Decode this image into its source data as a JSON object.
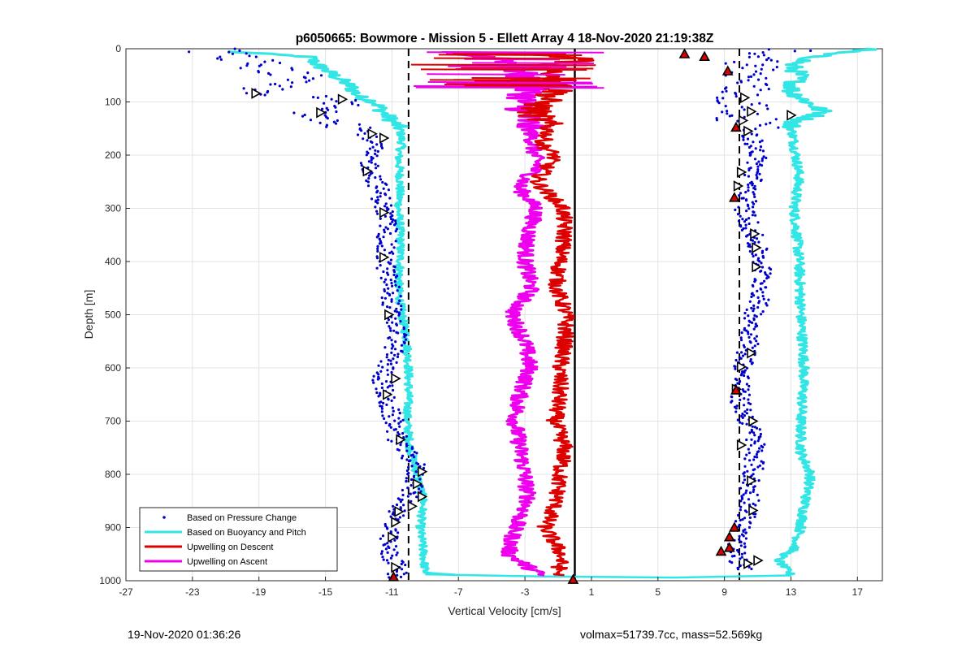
{
  "chart_data": {
    "type": "scatter",
    "title": "p6050665: Bowmore - Mission 5 - Ellett Array 4 18-Nov-2020 21:19:38Z",
    "xlabel": "Vertical Velocity [cm/s]",
    "ylabel": "Depth [m]",
    "xlim": [
      -27,
      18.5
    ],
    "ylim": [
      0,
      1000
    ],
    "y_reversed": true,
    "grid": true,
    "x_ticks": [
      -27,
      -23,
      -19,
      -15,
      -11,
      -7,
      -3,
      1,
      5,
      9,
      13,
      17
    ],
    "y_ticks": [
      0,
      100,
      200,
      300,
      400,
      500,
      600,
      700,
      800,
      900,
      1000
    ],
    "legend_position": "bottom-left",
    "reference_lines": [
      {
        "style": "dashed",
        "x": -10.0,
        "color": "#000000"
      },
      {
        "style": "dashed",
        "x": 9.9,
        "color": "#000000"
      },
      {
        "style": "solid",
        "x": 0.0,
        "color": "#000000"
      }
    ],
    "series": [
      {
        "name": "Based on Pressure Change",
        "kind": "points",
        "color": "#0000cc",
        "descent": {
          "depth": [
            0,
            20,
            50,
            80,
            100,
            120,
            140,
            160,
            180,
            200,
            230,
            260,
            300,
            340,
            380,
            420,
            460,
            500,
            540,
            580,
            620,
            660,
            700,
            740,
            780,
            820,
            860,
            900,
            940,
            980,
            995
          ],
          "velocity": [
            -22,
            -20,
            -17,
            -19,
            -14,
            -15.5,
            -13.5,
            -12.5,
            -12,
            -12.5,
            -12.2,
            -11.8,
            -11.5,
            -11.2,
            -11.5,
            -11.3,
            -11.0,
            -11.0,
            -10.6,
            -11.1,
            -11.6,
            -11.4,
            -10.9,
            -10.6,
            -9.6,
            -9.6,
            -10.4,
            -11.2,
            -11.3,
            -10.6,
            -10.8
          ]
        },
        "ascent": {
          "depth": [
            0,
            20,
            50,
            80,
            100,
            120,
            140,
            160,
            180,
            200,
            230,
            260,
            300,
            340,
            380,
            420,
            460,
            500,
            540,
            580,
            620,
            660,
            700,
            740,
            780,
            820,
            860,
            900,
            940,
            980
          ],
          "velocity": [
            13,
            11,
            10.5,
            10,
            10,
            10.2,
            10.4,
            10.6,
            10.8,
            11,
            10.8,
            10.6,
            10.2,
            10.6,
            11,
            11.3,
            11.2,
            10.8,
            10.6,
            10.3,
            10.0,
            9.9,
            10.4,
            10.9,
            10.8,
            10.5,
            10.6,
            10.0,
            9.6,
            10.1
          ]
        }
      },
      {
        "name": "Based on Buoyancy and Pitch",
        "kind": "line",
        "color": "#33e6e6",
        "descent": {
          "depth": [
            5,
            15,
            30,
            50,
            70,
            90,
            100,
            120,
            150,
            180,
            200,
            250,
            300,
            350,
            400,
            450,
            500,
            550,
            600,
            650,
            700,
            750,
            800,
            850,
            900,
            950,
            985,
            990
          ],
          "velocity": [
            -21,
            -16,
            -15.5,
            -14.5,
            -13.5,
            -13,
            -12,
            -11.5,
            -10.5,
            -10.4,
            -10.6,
            -10.5,
            -10.6,
            -10.5,
            -10.5,
            -10.6,
            -10.4,
            -10.1,
            -10.0,
            -10.0,
            -10.1,
            -9.9,
            -9.5,
            -9.1,
            -9.3,
            -9.1,
            -9.0,
            -7.0
          ]
        },
        "ascent": {
          "depth": [
            0,
            10,
            30,
            50,
            80,
            100,
            120,
            140,
            180,
            240,
            300,
            400,
            500,
            600,
            700,
            760,
            800,
            860,
            900,
            940,
            960,
            990
          ],
          "velocity": [
            18,
            15,
            13,
            13.5,
            13,
            14,
            15,
            13,
            13.2,
            13.5,
            13.2,
            13.5,
            13.6,
            13.8,
            13.6,
            13.6,
            14.2,
            13.8,
            13.6,
            13.2,
            12.2,
            13.0
          ]
        }
      },
      {
        "name": "Upwelling on Descent",
        "kind": "line",
        "color": "#dd0000",
        "depth": [
          10,
          20,
          30,
          50,
          80,
          100,
          120,
          150,
          180,
          200,
          250,
          300,
          350,
          400,
          450,
          500,
          550,
          600,
          650,
          700,
          750,
          800,
          850,
          900,
          950,
          990
        ],
        "velocity": [
          -3,
          1,
          -2,
          -1,
          -1,
          -2,
          -2.5,
          -1.5,
          -2,
          -1.2,
          -2.3,
          -0.7,
          -0.6,
          -0.9,
          -1.1,
          -0.5,
          -0.6,
          -0.9,
          -0.9,
          -1.2,
          -0.6,
          -0.9,
          -1.1,
          -1.8,
          -0.8,
          -1.0
        ]
      },
      {
        "name": "Upwelling on Ascent",
        "kind": "line",
        "color": "#ee00ee",
        "depth": [
          10,
          20,
          40,
          60,
          80,
          100,
          130,
          160,
          190,
          220,
          260,
          300,
          350,
          400,
          450,
          500,
          550,
          600,
          650,
          700,
          750,
          800,
          850,
          900,
          950,
          990
        ],
        "velocity": [
          -7,
          -4,
          -3.5,
          -3,
          -2.8,
          -3.2,
          -3,
          -2.6,
          -2.5,
          -2.2,
          -3.4,
          -2.3,
          -2.8,
          -3.0,
          -2.6,
          -3.8,
          -3.0,
          -2.7,
          -3.3,
          -3.6,
          -3.3,
          -3.0,
          -2.8,
          -3.6,
          -4.0,
          -2.0
        ]
      }
    ],
    "markers": {
      "descent_triangles": [
        {
          "x": -19.2,
          "y": 84
        },
        {
          "x": -14.0,
          "y": 95
        },
        {
          "x": -15.3,
          "y": 120
        },
        {
          "x": -12.2,
          "y": 160
        },
        {
          "x": -11.5,
          "y": 168
        },
        {
          "x": -12.5,
          "y": 230
        },
        {
          "x": -11.5,
          "y": 308
        },
        {
          "x": -11.5,
          "y": 392
        },
        {
          "x": -11.2,
          "y": 500
        },
        {
          "x": -10.8,
          "y": 620
        },
        {
          "x": -11.3,
          "y": 650
        },
        {
          "x": -10.5,
          "y": 735
        },
        {
          "x": -9.2,
          "y": 795
        },
        {
          "x": -9.5,
          "y": 818
        },
        {
          "x": -9.2,
          "y": 842
        },
        {
          "x": -9.8,
          "y": 860
        },
        {
          "x": -10.6,
          "y": 870
        },
        {
          "x": -10.8,
          "y": 890
        },
        {
          "x": -11.0,
          "y": 918
        },
        {
          "x": -10.8,
          "y": 975
        }
      ],
      "ascent_triangles": [
        {
          "x": 10.2,
          "y": 92
        },
        {
          "x": 10.6,
          "y": 118
        },
        {
          "x": 13.0,
          "y": 125
        },
        {
          "x": 10.1,
          "y": 135
        },
        {
          "x": 10.4,
          "y": 155
        },
        {
          "x": 10.0,
          "y": 232
        },
        {
          "x": 9.8,
          "y": 258
        },
        {
          "x": 10.8,
          "y": 348
        },
        {
          "x": 10.9,
          "y": 374
        },
        {
          "x": 10.9,
          "y": 410
        },
        {
          "x": 10.6,
          "y": 572
        },
        {
          "x": 10.0,
          "y": 598
        },
        {
          "x": 9.7,
          "y": 640
        },
        {
          "x": 10.7,
          "y": 700
        },
        {
          "x": 10.0,
          "y": 745
        },
        {
          "x": 10.6,
          "y": 812
        },
        {
          "x": 10.7,
          "y": 868
        },
        {
          "x": 11.0,
          "y": 962
        },
        {
          "x": 10.4,
          "y": 968
        }
      ],
      "red_triangles": [
        {
          "x": 6.6,
          "y": 10
        },
        {
          "x": 7.8,
          "y": 15
        },
        {
          "x": 9.2,
          "y": 42
        },
        {
          "x": 9.7,
          "y": 148
        },
        {
          "x": 9.6,
          "y": 280
        },
        {
          "x": 9.7,
          "y": 642
        },
        {
          "x": 9.6,
          "y": 900
        },
        {
          "x": 9.3,
          "y": 918
        },
        {
          "x": 9.3,
          "y": 938
        },
        {
          "x": 8.8,
          "y": 945
        },
        {
          "x": -10.9,
          "y": 993
        },
        {
          "x": -0.1,
          "y": 998
        }
      ]
    }
  },
  "footer": {
    "timestamp": "19-Nov-2020 01:36:26",
    "params": "volmax=51739.7cc, mass=52.569kg"
  }
}
